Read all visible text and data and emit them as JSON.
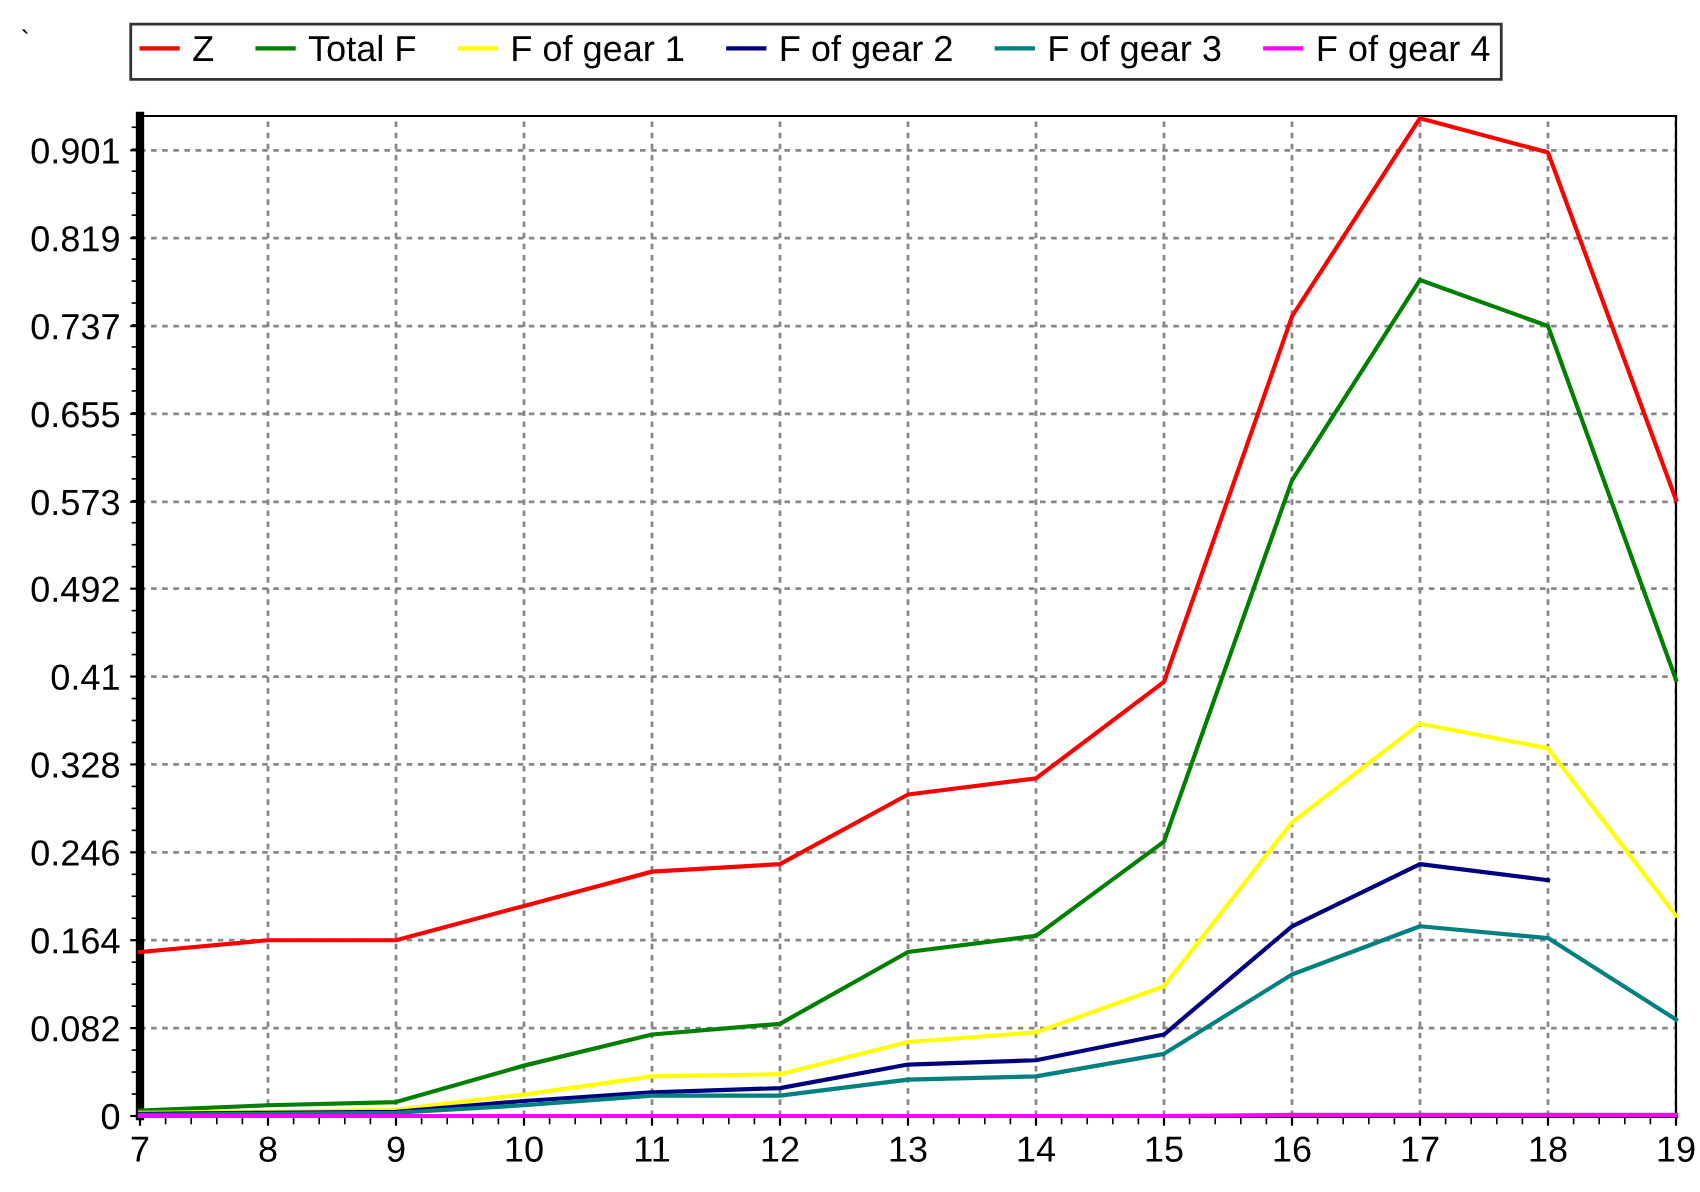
{
  "chart_data": {
    "type": "line",
    "x": [
      7,
      8,
      9,
      10,
      11,
      12,
      13,
      14,
      15,
      16,
      17,
      18,
      19
    ],
    "series": [
      {
        "name": "Z",
        "color": "#ff0000",
        "values": [
          0.153,
          0.164,
          0.164,
          0.196,
          0.228,
          0.235,
          0.3,
          0.315,
          0.405,
          0.746,
          0.931,
          0.899,
          0.575
        ]
      },
      {
        "name": "Total F",
        "color": "#008000",
        "values": [
          0.005,
          0.01,
          0.013,
          0.047,
          0.076,
          0.086,
          0.153,
          0.168,
          0.256,
          0.593,
          0.78,
          0.737,
          0.407
        ]
      },
      {
        "name": "F of gear 1",
        "color": "#ffff00",
        "values": [
          0.003,
          0.004,
          0.006,
          0.02,
          0.037,
          0.039,
          0.069,
          0.078,
          0.121,
          0.274,
          0.366,
          0.343,
          0.187
        ]
      },
      {
        "name": "F of gear 2",
        "color": "#000080",
        "values": [
          0.002,
          0.003,
          0.004,
          0.014,
          0.022,
          0.026,
          0.048,
          0.052,
          0.076,
          0.177,
          0.235,
          0.22,
          null
        ]
      },
      {
        "name": "F of gear 3",
        "color": "#008080",
        "values": [
          0.001,
          0.002,
          0.003,
          0.01,
          0.019,
          0.019,
          0.034,
          0.037,
          0.058,
          0.132,
          0.177,
          0.166,
          0.09
        ]
      },
      {
        "name": "F of gear 4",
        "color": "#ff00ff",
        "values": [
          0,
          0,
          0,
          0,
          0,
          0,
          0,
          0,
          0,
          0.001,
          0.001,
          0.001,
          0.001
        ]
      }
    ],
    "xlim": [
      7,
      19
    ],
    "xticks": [
      7,
      8,
      9,
      10,
      11,
      12,
      13,
      14,
      15,
      16,
      17,
      18,
      19
    ],
    "ylim": [
      0,
      0.933
    ],
    "yticks": [
      0,
      0.082,
      0.164,
      0.246,
      0.328,
      0.41,
      0.492,
      0.573,
      0.655,
      0.737,
      0.819,
      0.901
    ],
    "grid": true,
    "legend": "top",
    "marker": "none",
    "line_style": "solid",
    "annotations": [
      "`"
    ]
  }
}
